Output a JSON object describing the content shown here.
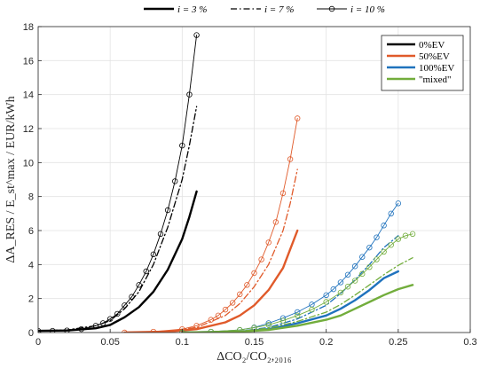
{
  "chart_data": {
    "type": "line",
    "xlabel": "ΔCO₂/CO₂,₂₀₁₆",
    "ylabel": "ΔA_RES / E_st^max / EUR/kWh",
    "xlim": [
      0,
      0.3
    ],
    "ylim": [
      0,
      18
    ],
    "xticks": [
      "0",
      "0.05",
      "0.1",
      "0.15",
      "0.2",
      "0.25",
      "0.3"
    ],
    "yticks": [
      "0",
      "2",
      "4",
      "6",
      "8",
      "10",
      "12",
      "14",
      "16",
      "18"
    ],
    "grid": true,
    "legend_location": "top-right",
    "top_legend": [
      {
        "label": "i = 3 %",
        "style": "solid"
      },
      {
        "label": "i = 7 %",
        "style": "dashdot"
      },
      {
        "label": "i = 10 %",
        "style": "circle"
      }
    ],
    "color_legend": [
      {
        "label": "0%EV",
        "color": "#000000"
      },
      {
        "label": "50%EV",
        "color": "#e05a2a"
      },
      {
        "label": "100%EV",
        "color": "#1f72bd"
      },
      {
        "label": "\"mixed\"",
        "color": "#72ad3c"
      }
    ],
    "series": [
      {
        "name": "0%EV",
        "rate": "i = 3 %",
        "color": "#000000",
        "style": "solid",
        "x": [
          0,
          0.02,
          0.04,
          0.05,
          0.06,
          0.07,
          0.08,
          0.09,
          0.1,
          0.105,
          0.11
        ],
        "y": [
          0.1,
          0.12,
          0.25,
          0.45,
          0.9,
          1.5,
          2.4,
          3.7,
          5.5,
          6.8,
          8.3
        ]
      },
      {
        "name": "0%EV",
        "rate": "i = 7 %",
        "color": "#000000",
        "style": "dashdot",
        "x": [
          0,
          0.02,
          0.04,
          0.05,
          0.06,
          0.07,
          0.08,
          0.09,
          0.1,
          0.105,
          0.11
        ],
        "y": [
          0.1,
          0.15,
          0.4,
          0.7,
          1.4,
          2.4,
          4.0,
          6.2,
          9.0,
          11.0,
          13.3
        ]
      },
      {
        "name": "0%EV",
        "rate": "i = 10 %",
        "color": "#000000",
        "style": "circle",
        "x": [
          0,
          0.01,
          0.02,
          0.03,
          0.04,
          0.045,
          0.05,
          0.055,
          0.06,
          0.065,
          0.07,
          0.075,
          0.08,
          0.085,
          0.09,
          0.095,
          0.1,
          0.105,
          0.11
        ],
        "y": [
          0.1,
          0.1,
          0.12,
          0.2,
          0.4,
          0.55,
          0.8,
          1.1,
          1.6,
          2.1,
          2.8,
          3.6,
          4.6,
          5.8,
          7.2,
          8.9,
          11.0,
          14.0,
          17.5
        ]
      },
      {
        "name": "50%EV",
        "rate": "i = 3 %",
        "color": "#e05a2a",
        "style": "solid",
        "x": [
          0.06,
          0.09,
          0.11,
          0.13,
          0.14,
          0.15,
          0.16,
          0.17,
          0.175,
          0.18
        ],
        "y": [
          0,
          0.05,
          0.2,
          0.6,
          1.0,
          1.6,
          2.5,
          3.8,
          4.9,
          6.0
        ]
      },
      {
        "name": "50%EV",
        "rate": "i = 7 %",
        "color": "#e05a2a",
        "style": "dashdot",
        "x": [
          0.06,
          0.09,
          0.11,
          0.13,
          0.14,
          0.15,
          0.16,
          0.17,
          0.175,
          0.18
        ],
        "y": [
          0,
          0.08,
          0.3,
          1.0,
          1.7,
          2.7,
          4.0,
          6.0,
          7.6,
          9.6
        ]
      },
      {
        "name": "50%EV",
        "rate": "i = 10 %",
        "color": "#e05a2a",
        "style": "circle",
        "x": [
          0.06,
          0.08,
          0.1,
          0.11,
          0.12,
          0.125,
          0.13,
          0.135,
          0.14,
          0.145,
          0.15,
          0.155,
          0.16,
          0.165,
          0.17,
          0.175,
          0.18
        ],
        "y": [
          0,
          0.05,
          0.2,
          0.4,
          0.75,
          1.0,
          1.35,
          1.75,
          2.25,
          2.8,
          3.5,
          4.3,
          5.3,
          6.5,
          8.2,
          10.2,
          12.6
        ]
      },
      {
        "name": "100%EV",
        "rate": "i = 3 %",
        "color": "#1f72bd",
        "style": "solid",
        "x": [
          0.1,
          0.14,
          0.16,
          0.18,
          0.2,
          0.21,
          0.22,
          0.23,
          0.24,
          0.25
        ],
        "y": [
          0,
          0.05,
          0.2,
          0.55,
          1.0,
          1.4,
          1.9,
          2.5,
          3.2,
          3.6
        ]
      },
      {
        "name": "100%EV",
        "rate": "i = 7 %",
        "color": "#1f72bd",
        "style": "dashdot",
        "x": [
          0.1,
          0.14,
          0.16,
          0.18,
          0.2,
          0.21,
          0.22,
          0.23,
          0.24,
          0.25
        ],
        "y": [
          0,
          0.08,
          0.3,
          0.8,
          1.6,
          2.3,
          3.1,
          4.0,
          5.0,
          5.7
        ]
      },
      {
        "name": "100%EV",
        "rate": "i = 10 %",
        "color": "#1f72bd",
        "style": "circle",
        "x": [
          0.1,
          0.12,
          0.14,
          0.15,
          0.16,
          0.17,
          0.18,
          0.19,
          0.2,
          0.205,
          0.21,
          0.215,
          0.22,
          0.225,
          0.23,
          0.235,
          0.24,
          0.245,
          0.25
        ],
        "y": [
          0,
          0.05,
          0.15,
          0.3,
          0.55,
          0.85,
          1.2,
          1.65,
          2.2,
          2.55,
          2.95,
          3.4,
          3.9,
          4.45,
          5.0,
          5.6,
          6.3,
          7.0,
          7.6
        ]
      },
      {
        "name": "\"mixed\"",
        "rate": "i = 3 %",
        "color": "#72ad3c",
        "style": "solid",
        "x": [
          0.1,
          0.14,
          0.16,
          0.18,
          0.2,
          0.21,
          0.22,
          0.23,
          0.24,
          0.25,
          0.26
        ],
        "y": [
          0,
          0.05,
          0.15,
          0.4,
          0.75,
          1.0,
          1.4,
          1.8,
          2.2,
          2.55,
          2.8
        ]
      },
      {
        "name": "\"mixed\"",
        "rate": "i = 7 %",
        "color": "#72ad3c",
        "style": "dashdot",
        "x": [
          0.1,
          0.14,
          0.16,
          0.18,
          0.2,
          0.21,
          0.22,
          0.23,
          0.24,
          0.25,
          0.26
        ],
        "y": [
          0,
          0.08,
          0.25,
          0.65,
          1.2,
          1.65,
          2.2,
          2.8,
          3.4,
          3.95,
          4.4
        ]
      },
      {
        "name": "\"mixed\"",
        "rate": "i = 10 %",
        "color": "#72ad3c",
        "style": "circle",
        "x": [
          0.1,
          0.12,
          0.14,
          0.15,
          0.16,
          0.17,
          0.18,
          0.19,
          0.2,
          0.21,
          0.215,
          0.22,
          0.225,
          0.23,
          0.235,
          0.24,
          0.245,
          0.25,
          0.255,
          0.26
        ],
        "y": [
          0,
          0.05,
          0.15,
          0.28,
          0.45,
          0.7,
          1.0,
          1.35,
          1.8,
          2.35,
          2.7,
          3.05,
          3.45,
          3.85,
          4.3,
          4.75,
          5.15,
          5.5,
          5.7,
          5.8
        ]
      }
    ]
  }
}
